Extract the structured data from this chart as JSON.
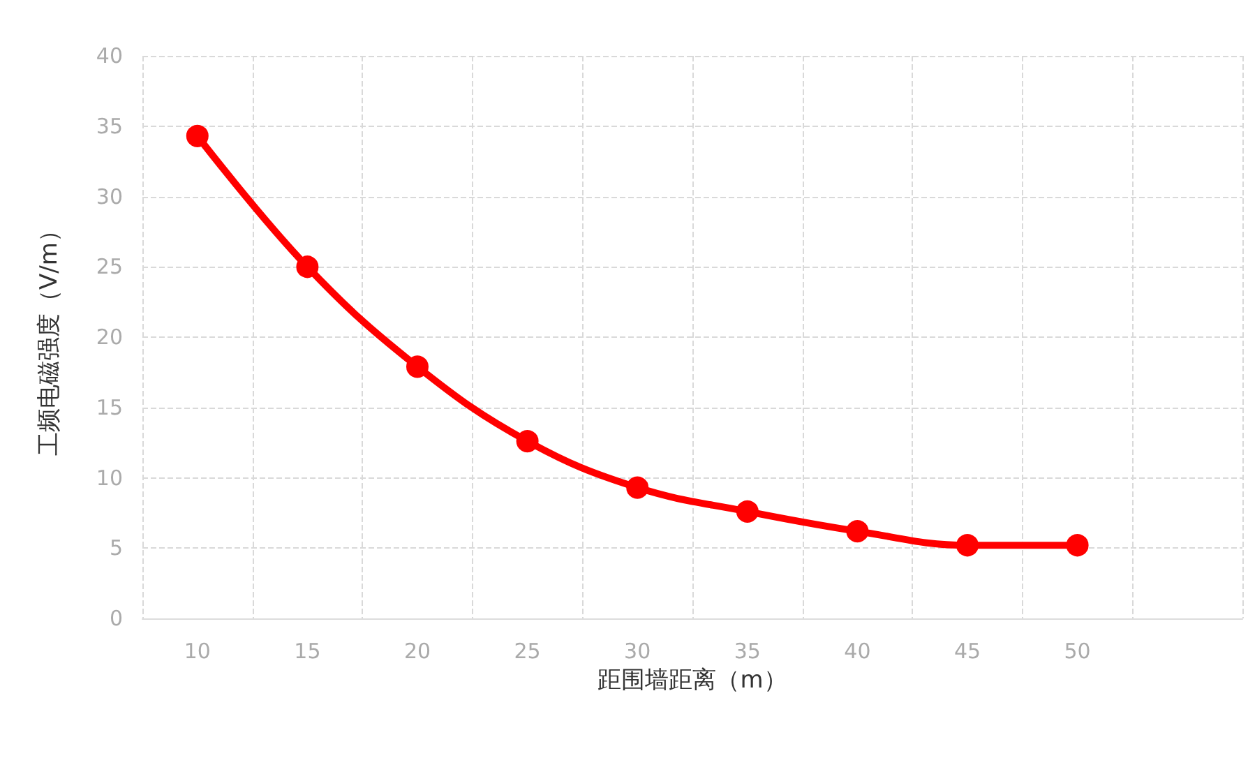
{
  "chart_data": {
    "type": "line",
    "xlabel": "距围墙距离（m）",
    "ylabel": "工频电磁强度（V/m）",
    "categories": [
      "10",
      "15",
      "20",
      "25",
      "30",
      "35",
      "40",
      "45",
      "50",
      null
    ],
    "series": [
      {
        "color": "#ff0000",
        "values": [
          34.3,
          25,
          17.9,
          12.6,
          9.3,
          7.6,
          6.2,
          5.2,
          5.2,
          null
        ]
      }
    ],
    "ylim": [
      0,
      40
    ],
    "yticks": [
      0,
      5,
      10,
      15,
      20,
      25,
      30,
      35,
      40
    ],
    "grid": true,
    "marker": "circle",
    "line_style": "solid"
  }
}
